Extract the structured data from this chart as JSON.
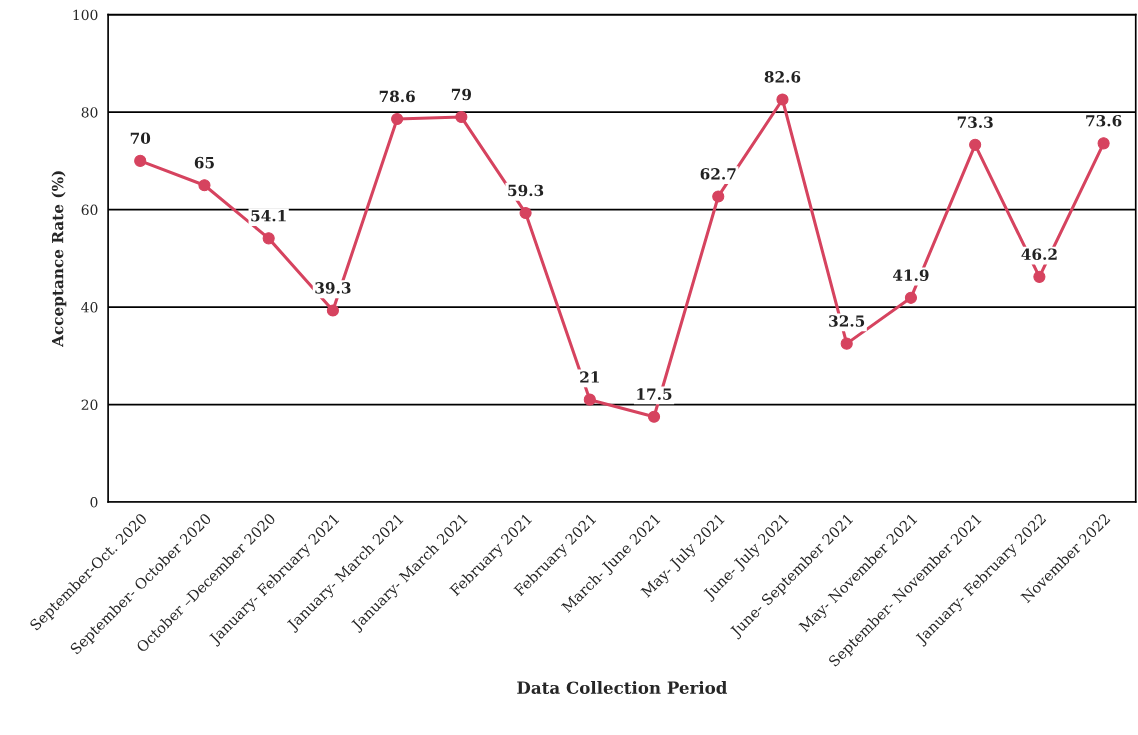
{
  "chart_data": {
    "type": "line",
    "xlabel": "Data Collection Period",
    "ylabel": "Acceptance Rate (%)",
    "categories": [
      "September-Oct. 2020",
      "September- October 2020",
      "October –December 2020",
      "January- February 2021",
      "January- March 2021",
      "January- March 2021",
      "February 2021",
      "February 2021",
      "March- June 2021",
      "May- July 2021",
      "June- July 2021",
      "June- September 2021",
      "May- November 2021",
      "September- November 2021",
      "January- February 2022",
      "November 2022"
    ],
    "series": [
      {
        "color": "#d6435f",
        "values": [
          70,
          65,
          54.1,
          39.3,
          78.6,
          79,
          59.3,
          21,
          17.5,
          62.7,
          82.6,
          32.5,
          41.9,
          73.3,
          46.2,
          73.6
        ]
      }
    ],
    "ylim": [
      0,
      100
    ],
    "yticks": [
      0,
      20,
      40,
      60,
      80,
      100
    ],
    "grid": "y",
    "marker": "circle",
    "line_style": "solid",
    "data_labels": true
  }
}
